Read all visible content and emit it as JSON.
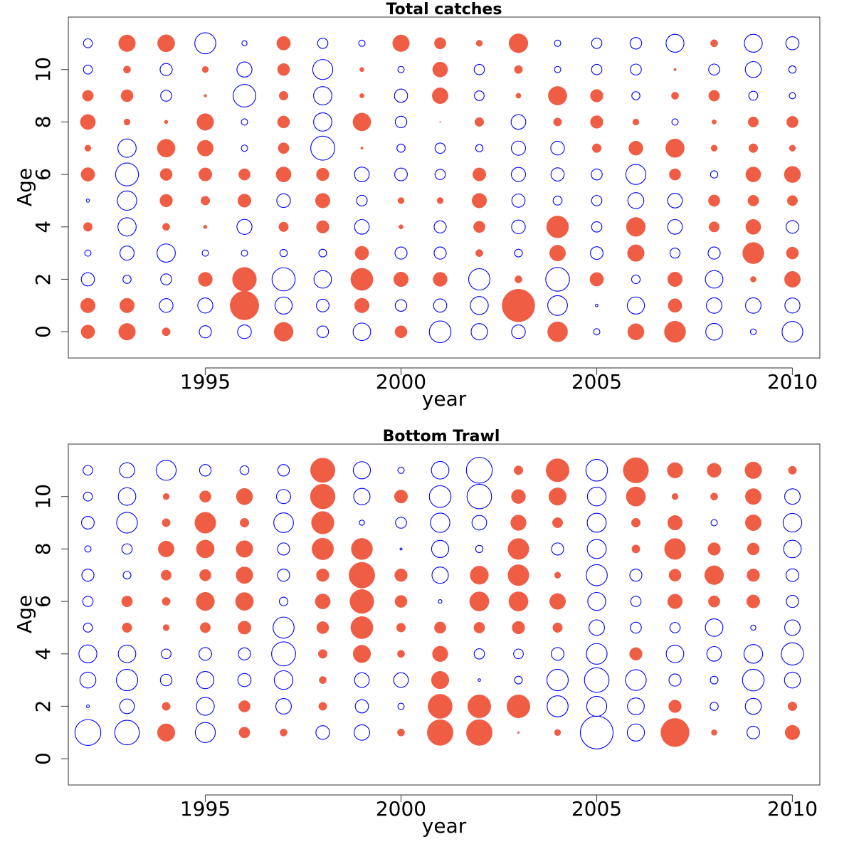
{
  "colors": {
    "positive": "#ef5d45",
    "negative": "#0000ff",
    "frame": "#555555"
  },
  "chart_data": [
    {
      "type": "scatter",
      "subtype": "bubble",
      "title": "Total catches",
      "xlabel": "year",
      "ylabel": "Age",
      "xlim": [
        1991.5,
        2010.7
      ],
      "ylim": [
        -1,
        12
      ],
      "x_ticks": [
        1995,
        2000,
        2005,
        2010
      ],
      "y_ticks": [
        0,
        2,
        4,
        6,
        8,
        10
      ],
      "years": [
        1992,
        1993,
        1994,
        1995,
        1996,
        1997,
        1998,
        1999,
        2000,
        2001,
        2002,
        2003,
        2004,
        2005,
        2006,
        2007,
        2008,
        2009,
        2010
      ],
      "ages": [
        0,
        1,
        2,
        3,
        4,
        5,
        6,
        7,
        8,
        9,
        10,
        11
      ],
      "note": "residual values by age (rows, age 0..11) and year (columns); positive = filled red, negative = open blue; bubble size proportional to sqrt(|value|)",
      "residuals": [
        [
          1.4,
          2.1,
          0.5,
          -1.1,
          -1.4,
          2.7,
          -1.0,
          -2.3,
          1.1,
          -3.5,
          -2.0,
          -1.4,
          3.0,
          -0.3,
          2.0,
          3.4,
          -2.1,
          -0.25,
          -3.2
        ],
        [
          1.6,
          1.6,
          -1.4,
          -1.7,
          6.2,
          -2.2,
          -1.2,
          1.6,
          -1.0,
          -1.3,
          -2.4,
          8.0,
          -2.9,
          -0.05,
          -2.2,
          1.4,
          -1.8,
          -1.8,
          -1.7
        ],
        [
          -1.3,
          -0.5,
          -0.9,
          1.5,
          4.3,
          -4.0,
          -2.3,
          3.7,
          1.6,
          1.5,
          -3.4,
          0.4,
          -4.2,
          1.4,
          -0.55,
          1.6,
          -2.3,
          0.25,
          1.9
        ],
        [
          -0.3,
          -1.5,
          -2.5,
          -0.3,
          -0.3,
          -0.4,
          -0.45,
          1.4,
          -1.1,
          -1.1,
          0.4,
          -0.45,
          1.9,
          -1.2,
          2.1,
          -0.75,
          -1.1,
          3.4,
          1.1
        ],
        [
          0.6,
          -2.5,
          0.4,
          0.1,
          -1.7,
          0.7,
          1.2,
          -1.6,
          0.15,
          -1.1,
          1.0,
          -1.4,
          3.6,
          -0.8,
          2.7,
          -1.6,
          0.8,
          1.7,
          -1.2
        ],
        [
          -0.08,
          -2.8,
          1.2,
          0.6,
          1.3,
          -1.4,
          1.6,
          -0.85,
          0.3,
          0.3,
          1.6,
          -1.3,
          -0.6,
          -0.8,
          -1.9,
          -1.6,
          1.0,
          0.9,
          0.8
        ],
        [
          1.4,
          -3.9,
          1.1,
          1.3,
          1.0,
          1.7,
          1.2,
          -1.6,
          -1.2,
          -0.8,
          1.3,
          -1.5,
          -1.3,
          -0.9,
          -3.0,
          1.0,
          -0.4,
          1.7,
          2.0
        ],
        [
          0.3,
          -2.5,
          2.4,
          1.9,
          -0.3,
          0.9,
          -4.3,
          0.05,
          -0.5,
          -0.8,
          -0.4,
          -1.5,
          -1.4,
          0.6,
          1.5,
          2.6,
          0.3,
          0.6,
          0.3
        ],
        [
          1.7,
          0.3,
          0.1,
          2.1,
          -0.3,
          1.1,
          -2.5,
          2.4,
          -1.0,
          0.01,
          0.6,
          -1.6,
          0.5,
          1.2,
          0.3,
          -0.3,
          0.15,
          0.8,
          1.0
        ],
        [
          0.9,
          1.1,
          -0.9,
          0.06,
          -3.8,
          0.6,
          -2.5,
          0.15,
          -1.3,
          1.9,
          -0.7,
          0.2,
          2.6,
          1.2,
          -0.5,
          0.4,
          0.9,
          -0.6,
          -0.3
        ],
        [
          -0.6,
          0.4,
          -1.1,
          0.3,
          -1.7,
          1.1,
          -3.0,
          0.15,
          -0.3,
          1.7,
          -0.8,
          0.5,
          -0.3,
          -0.8,
          -0.9,
          0.05,
          -0.9,
          -1.9,
          -0.4
        ],
        [
          -0.6,
          2.1,
          2.2,
          -3.3,
          -0.2,
          1.4,
          -0.8,
          -0.3,
          2.1,
          1.0,
          0.3,
          2.7,
          -0.3,
          -0.8,
          -1.0,
          -2.4,
          0.4,
          -2.4,
          -1.3
        ]
      ]
    },
    {
      "type": "scatter",
      "subtype": "bubble",
      "title": "Bottom Trawl",
      "xlabel": "year",
      "ylabel": "Age",
      "xlim": [
        1991.5,
        2010.7
      ],
      "ylim": [
        -1,
        12
      ],
      "x_ticks": [
        1995,
        2000,
        2005,
        2010
      ],
      "y_ticks": [
        0,
        2,
        4,
        6,
        8,
        10
      ],
      "years": [
        1992,
        1993,
        1994,
        1995,
        1996,
        1997,
        1998,
        1999,
        2000,
        2001,
        2002,
        2003,
        2004,
        2005,
        2006,
        2007,
        2008,
        2009,
        2010
      ],
      "ages": [
        0,
        1,
        2,
        3,
        4,
        5,
        6,
        7,
        8,
        9,
        10,
        11
      ],
      "note": "residual values by age (rows, age 0..11) and year (columns); null = no data; positive = filled red, negative = open blue; bubble size proportional to sqrt(|value|)",
      "residuals": [
        [
          null,
          null,
          null,
          null,
          null,
          null,
          null,
          null,
          null,
          null,
          null,
          null,
          null,
          null,
          null,
          null,
          null,
          null,
          null
        ],
        [
          -5.0,
          -4.5,
          2.3,
          -3.0,
          0.9,
          0.4,
          -1.4,
          -1.8,
          0.4,
          5.0,
          5.0,
          0.03,
          0.3,
          -8.0,
          -2.2,
          6.0,
          0.25,
          -1.2,
          1.6
        ],
        [
          -0.06,
          -1.6,
          0.5,
          -2.4,
          1.0,
          -1.8,
          0.5,
          -1.3,
          -0.3,
          4.4,
          4.0,
          4.0,
          -3.3,
          -3.0,
          -2.1,
          1.2,
          -0.5,
          -1.9,
          0.6
        ],
        [
          -1.9,
          -3.4,
          -1.0,
          -2.2,
          -1.3,
          -2.6,
          0.4,
          -1.6,
          -1.6,
          2.3,
          -0.05,
          -0.45,
          -3.4,
          -4.5,
          -3.2,
          -1.1,
          -0.45,
          -3.5,
          -1.9
        ],
        [
          -2.4,
          -2.3,
          -0.7,
          -1.2,
          -1.1,
          -4.3,
          0.6,
          2.3,
          0.4,
          1.8,
          -0.8,
          -0.7,
          -1.2,
          -3.2,
          1.2,
          -2.3,
          -1.6,
          -2.6,
          -3.7
        ],
        [
          -0.6,
          0.7,
          0.3,
          0.8,
          1.3,
          -3.3,
          1.1,
          3.7,
          0.6,
          1.0,
          0.9,
          1.2,
          0.7,
          -1.8,
          -0.9,
          -0.8,
          -2.3,
          -0.2,
          -1.8
        ],
        [
          -0.8,
          0.9,
          0.5,
          2.5,
          2.4,
          -0.55,
          1.7,
          4.3,
          1.1,
          -0.1,
          2.8,
          2.8,
          1.9,
          -2.4,
          -0.8,
          1.6,
          1.0,
          1.3,
          -1.1
        ],
        [
          -1.1,
          -0.45,
          0.8,
          1.0,
          2.1,
          -1.1,
          1.2,
          5.0,
          1.2,
          -2.0,
          2.5,
          3.3,
          0.3,
          -3.3,
          -1.1,
          1.1,
          2.7,
          1.2,
          -1.2
        ],
        [
          -0.3,
          -0.8,
          1.9,
          2.4,
          2.1,
          -1.1,
          3.5,
          3.4,
          -0.03,
          -2.2,
          -0.4,
          3.3,
          -1.1,
          -2.7,
          0.5,
          3.3,
          1.2,
          1.1,
          -2.3
        ],
        [
          -1.2,
          -3.2,
          0.5,
          3.3,
          0.6,
          -2.9,
          3.8,
          -0.2,
          -0.9,
          -2.8,
          -1.6,
          1.8,
          0.8,
          -2.7,
          0.6,
          1.6,
          -0.3,
          1.9,
          -2.6
        ],
        [
          -0.6,
          -2.3,
          0.3,
          1.0,
          2.0,
          -1.5,
          4.6,
          -2.0,
          1.3,
          -3.5,
          -4.5,
          1.5,
          2.3,
          -2.6,
          2.8,
          0.3,
          0.4,
          1.9,
          -1.8
        ],
        [
          -0.7,
          -1.7,
          -3.0,
          -1.0,
          -0.6,
          -1.0,
          4.5,
          -2.2,
          -0.3,
          -2.3,
          -5.0,
          0.6,
          4.0,
          -3.5,
          4.8,
          1.8,
          1.5,
          2.1,
          0.5
        ]
      ]
    }
  ]
}
